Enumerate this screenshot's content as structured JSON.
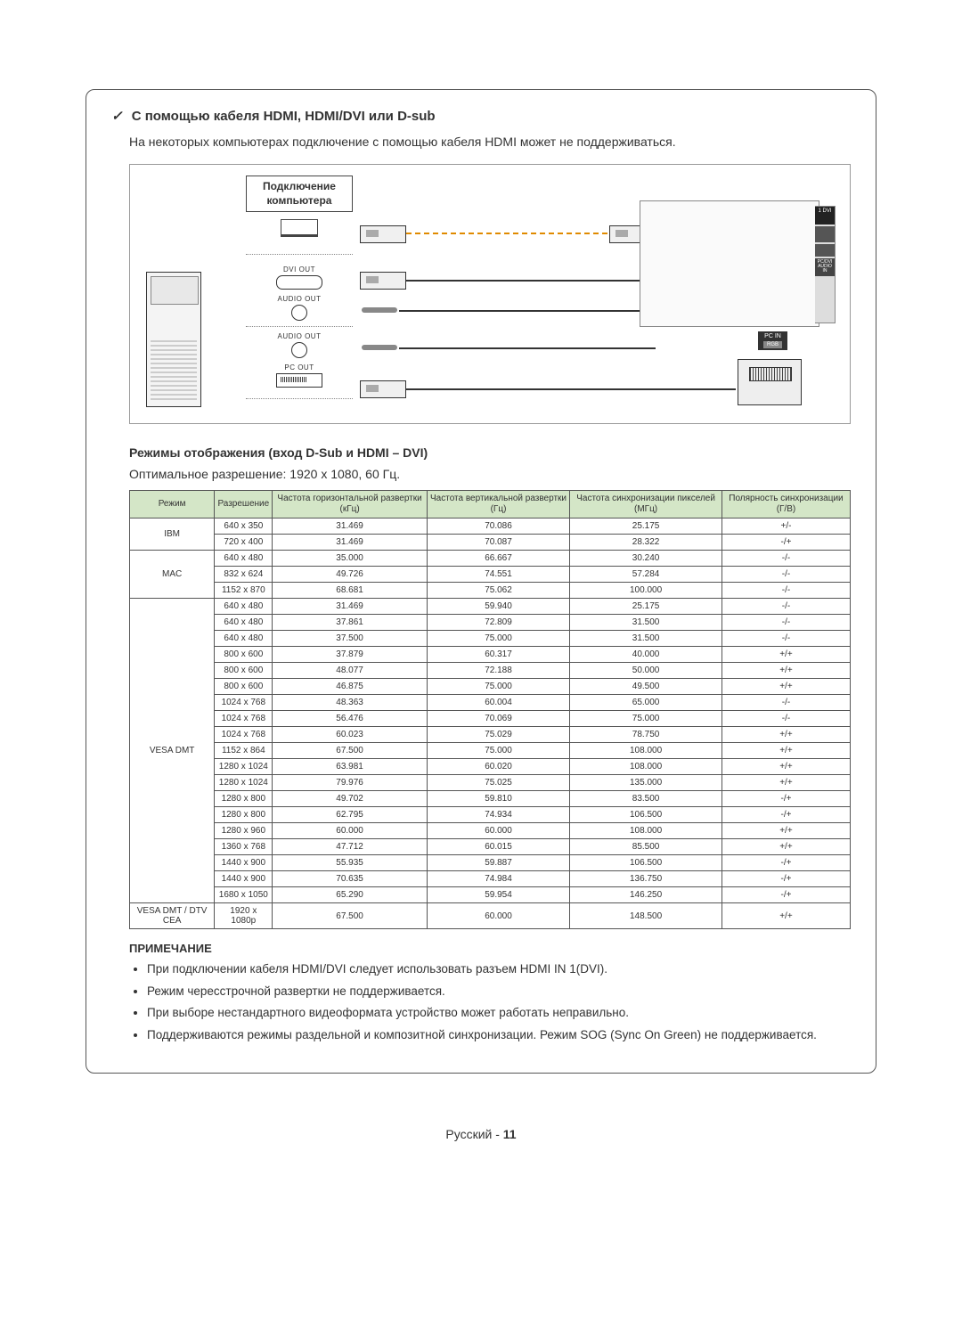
{
  "section": {
    "bullet": "✓",
    "title": "С помощью кабеля HDMI, HDMI/DVI или D-sub",
    "intro": "На некоторых компьютерах подключение с помощью кабеля HDMI может не поддерживаться."
  },
  "diagram": {
    "label_line1": "Подключение",
    "label_line2": "компьютера",
    "ports": {
      "dvi_out": "DVI OUT",
      "audio_out": "AUDIO OUT",
      "pc_out": "PC OUT"
    },
    "tv": {
      "hdmi_port": "1 DVI",
      "avin": "AV IN",
      "pc_dvi_audio": "PC/DVI AUDIO IN",
      "pcin": "PC IN",
      "rgb": "RGB"
    }
  },
  "display_modes": {
    "heading": "Режимы отображения (вход D-Sub и HDMI – DVI)",
    "optimal": "Оптимальное разрешение: 1920 x 1080, 60 Гц.",
    "columns": [
      "Режим",
      "Разрешение",
      "Частота горизонтальной развертки (кГц)",
      "Частота вертикальной развертки (Гц)",
      "Частота синхронизации пикселей (МГц)",
      "Полярность синхронизации (Г/В)"
    ],
    "groups": [
      {
        "mode": "IBM",
        "rows": [
          [
            "640 x 350",
            "31.469",
            "70.086",
            "25.175",
            "+/-"
          ],
          [
            "720 x 400",
            "31.469",
            "70.087",
            "28.322",
            "-/+"
          ]
        ]
      },
      {
        "mode": "MAC",
        "rows": [
          [
            "640 x 480",
            "35.000",
            "66.667",
            "30.240",
            "-/-"
          ],
          [
            "832 x 624",
            "49.726",
            "74.551",
            "57.284",
            "-/-"
          ],
          [
            "1152 x 870",
            "68.681",
            "75.062",
            "100.000",
            "-/-"
          ]
        ]
      },
      {
        "mode": "VESA DMT",
        "rows": [
          [
            "640 x 480",
            "31.469",
            "59.940",
            "25.175",
            "-/-"
          ],
          [
            "640 x 480",
            "37.861",
            "72.809",
            "31.500",
            "-/-"
          ],
          [
            "640 x 480",
            "37.500",
            "75.000",
            "31.500",
            "-/-"
          ],
          [
            "800 x 600",
            "37.879",
            "60.317",
            "40.000",
            "+/+"
          ],
          [
            "800 x 600",
            "48.077",
            "72.188",
            "50.000",
            "+/+"
          ],
          [
            "800 x 600",
            "46.875",
            "75.000",
            "49.500",
            "+/+"
          ],
          [
            "1024 x 768",
            "48.363",
            "60.004",
            "65.000",
            "-/-"
          ],
          [
            "1024 x 768",
            "56.476",
            "70.069",
            "75.000",
            "-/-"
          ],
          [
            "1024 x 768",
            "60.023",
            "75.029",
            "78.750",
            "+/+"
          ],
          [
            "1152 x 864",
            "67.500",
            "75.000",
            "108.000",
            "+/+"
          ],
          [
            "1280 x 1024",
            "63.981",
            "60.020",
            "108.000",
            "+/+"
          ],
          [
            "1280 x 1024",
            "79.976",
            "75.025",
            "135.000",
            "+/+"
          ],
          [
            "1280 x 800",
            "49.702",
            "59.810",
            "83.500",
            "-/+"
          ],
          [
            "1280 x 800",
            "62.795",
            "74.934",
            "106.500",
            "-/+"
          ],
          [
            "1280 x 960",
            "60.000",
            "60.000",
            "108.000",
            "+/+"
          ],
          [
            "1360 x 768",
            "47.712",
            "60.015",
            "85.500",
            "+/+"
          ],
          [
            "1440 x 900",
            "55.935",
            "59.887",
            "106.500",
            "-/+"
          ],
          [
            "1440 x 900",
            "70.635",
            "74.984",
            "136.750",
            "-/+"
          ],
          [
            "1680 x 1050",
            "65.290",
            "59.954",
            "146.250",
            "-/+"
          ]
        ]
      },
      {
        "mode": "VESA DMT / DTV CEA",
        "rows": [
          [
            "1920 x 1080p",
            "67.500",
            "60.000",
            "148.500",
            "+/+"
          ]
        ]
      }
    ]
  },
  "notes": {
    "heading": "ПРИМЕЧАНИЕ",
    "items": [
      "При подключении кабеля HDMI/DVI следует использовать разъем HDMI IN 1(DVI).",
      "Режим чересстрочной развертки не поддерживается.",
      "При выборе нестандартного видеоформата устройство может работать неправильно.",
      "Поддерживаются режимы раздельной и композитной синхронизации. Режим SOG (Sync On Green) не поддерживается."
    ]
  },
  "footer": {
    "lang": "Русский",
    "page": "11"
  },
  "colors": {
    "table_header_bg": "#d4e6c7",
    "cable_dashed": "#e08a00",
    "border": "#555555"
  }
}
